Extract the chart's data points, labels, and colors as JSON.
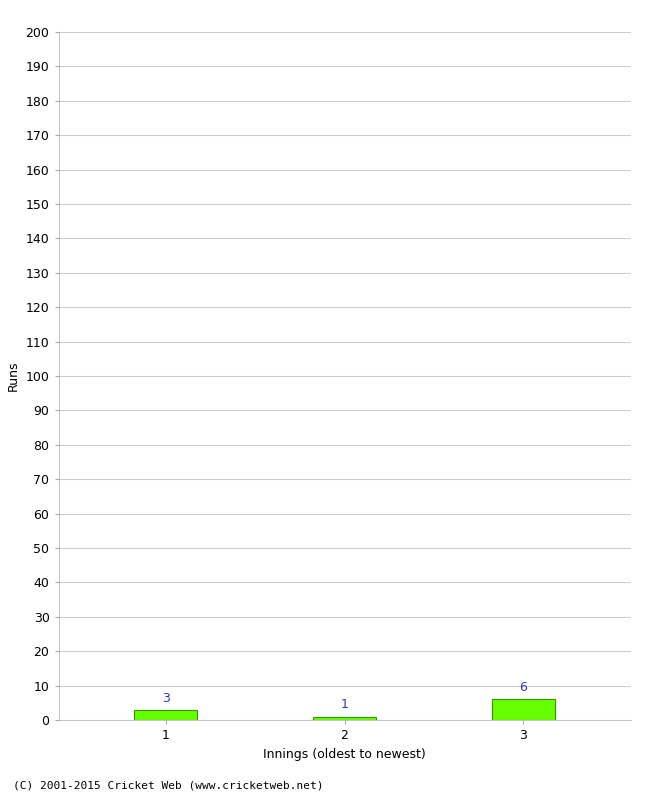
{
  "xlabel": "Innings (oldest to newest)",
  "ylabel": "Runs",
  "categories": [
    1,
    2,
    3
  ],
  "values": [
    3,
    1,
    6
  ],
  "bar_color": "#66ff00",
  "bar_edge_color": "#339900",
  "value_color": "#3333cc",
  "ylim": [
    0,
    200
  ],
  "yticks": [
    0,
    10,
    20,
    30,
    40,
    50,
    60,
    70,
    80,
    90,
    100,
    110,
    120,
    130,
    140,
    150,
    160,
    170,
    180,
    190,
    200
  ],
  "background_color": "#ffffff",
  "grid_color": "#cccccc",
  "footer": "(C) 2001-2015 Cricket Web (www.cricketweb.net)"
}
